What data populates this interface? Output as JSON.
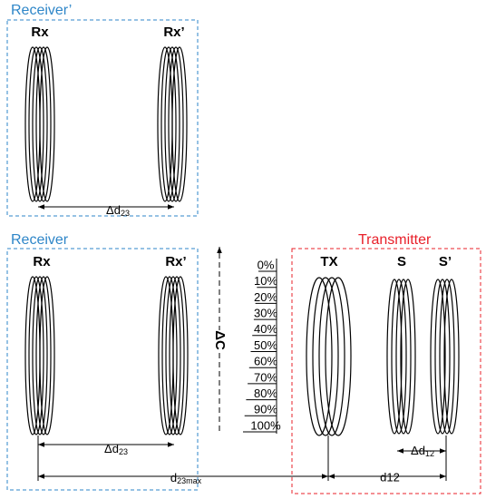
{
  "receiver_prime": {
    "title": "Receiver’",
    "rx": "Rx",
    "rx_prime": "Rx’",
    "spacing": {
      "base": "Δd",
      "sub": "23"
    }
  },
  "receiver": {
    "title": "Receiver",
    "rx": "Rx",
    "rx_prime": "Rx’",
    "spacing": {
      "base": "Δd",
      "sub": "23"
    }
  },
  "transmitter": {
    "title": "Transmitter",
    "tx": "TX",
    "s": "S",
    "s_prime": "S’",
    "spacing": {
      "base": "Δd",
      "sub": "12"
    },
    "distance": "d12"
  },
  "distance_max": {
    "base": "d",
    "sub": "23max"
  },
  "capacitance": "ΔC",
  "scale": [
    "0%",
    "10%",
    "20%",
    "30%",
    "40%",
    "50%",
    "60%",
    "70%",
    "80%",
    "90%",
    "100%"
  ]
}
